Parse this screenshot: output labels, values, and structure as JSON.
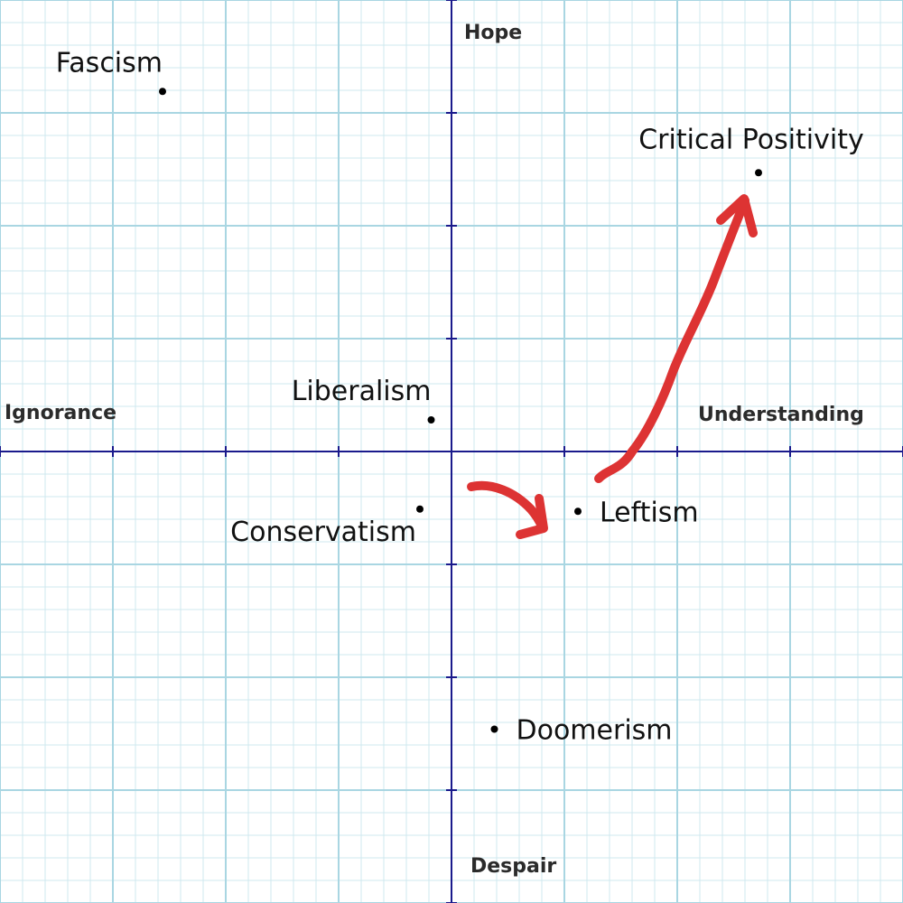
{
  "chart_data": {
    "type": "scatter",
    "title": "",
    "xlabel_left": "Ignorance",
    "xlabel_right": "Understanding",
    "ylabel_top": "Hope",
    "ylabel_bottom": "Despair",
    "xlim": [
      -4,
      4
    ],
    "ylim": [
      -4,
      4
    ],
    "grid": true,
    "points": [
      {
        "label": "Fascism",
        "x": -2.56,
        "y": 3.19,
        "label_side": "above-left"
      },
      {
        "label": "Critical Positivity",
        "x": 2.72,
        "y": 2.47,
        "label_side": "above"
      },
      {
        "label": "Liberalism",
        "x": -0.18,
        "y": 0.28,
        "label_side": "above-left"
      },
      {
        "label": "Conservatism",
        "x": -0.28,
        "y": -0.51,
        "label_side": "below-left"
      },
      {
        "label": "Leftism",
        "x": 1.12,
        "y": -0.53,
        "label_side": "right"
      },
      {
        "label": "Doomerism",
        "x": 0.38,
        "y": -2.46,
        "label_side": "right"
      }
    ],
    "annotations": [
      {
        "type": "arrow",
        "color": "#dd3333",
        "from": "Conservatism",
        "to": "Leftism"
      },
      {
        "type": "arrow",
        "color": "#dd3333",
        "from": "Leftism",
        "to": "Critical Positivity"
      }
    ]
  },
  "colors": {
    "grid_minor": "#cfe8ef",
    "grid_major": "#a9d6e2",
    "axis": "#1a1a8c",
    "point": "#000000",
    "arrow": "#dd3333"
  }
}
